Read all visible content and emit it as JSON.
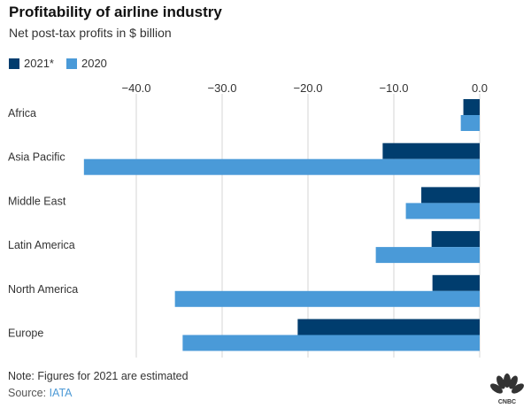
{
  "title": "Profitability of airline industry",
  "subtitle": "Net post-tax profits in $ billion",
  "colors": {
    "s2021": "#003d6e",
    "s2020": "#4a9ad8",
    "grid": "#d6d6d6",
    "text": "#333333"
  },
  "footnote": "Note: Figures for 2021 are estimated",
  "source_label": "Source: ",
  "source_name": "IATA",
  "logo_text": "CNBC",
  "chart_data": {
    "type": "bar",
    "orientation": "horizontal",
    "title": "Profitability of airline industry",
    "subtitle": "Net post-tax profits in $ billion",
    "categories": [
      "Africa",
      "Asia Pacific",
      "Middle East",
      "Latin America",
      "North America",
      "Europe"
    ],
    "series": [
      {
        "name": "2021*",
        "values": [
          -1.9,
          -11.3,
          -6.8,
          -5.6,
          -5.5,
          -21.2
        ]
      },
      {
        "name": "2020",
        "values": [
          -2.2,
          -46.1,
          -8.6,
          -12.1,
          -35.5,
          -34.6
        ]
      }
    ],
    "xlim": [
      -48,
      0
    ],
    "xticks": [
      -40,
      -30,
      -20,
      -10,
      0
    ],
    "xtick_labels": [
      "−40.0",
      "−30.0",
      "−20.0",
      "−10.0",
      "0.0"
    ],
    "grid": true,
    "legend": "top-left"
  }
}
